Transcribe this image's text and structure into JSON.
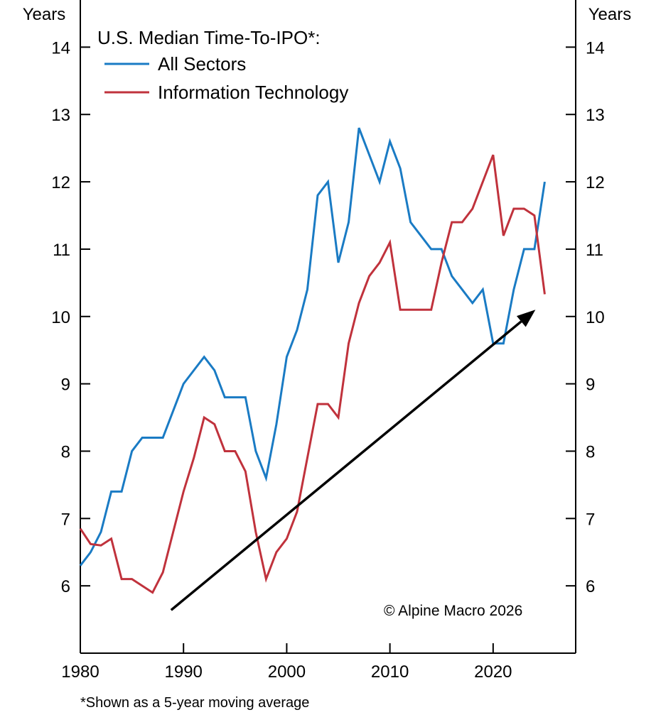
{
  "chart_data": {
    "type": "line",
    "title": "U.S. Median Time-To-IPO*:",
    "ylabel_left": "Years",
    "ylabel_right": "Years",
    "xlim": [
      1980,
      2028
    ],
    "ylim": [
      5,
      14.7
    ],
    "xticks": [
      1980,
      1990,
      2000,
      2010,
      2020
    ],
    "yticks": [
      6,
      7,
      8,
      9,
      10,
      11,
      12,
      13,
      14
    ],
    "grid": false,
    "legend_placement": "top-left",
    "x": [
      1980,
      1981,
      1982,
      1983,
      1984,
      1985,
      1986,
      1987,
      1988,
      1989,
      1990,
      1991,
      1992,
      1993,
      1994,
      1995,
      1996,
      1997,
      1998,
      1999,
      2000,
      2001,
      2002,
      2003,
      2004,
      2005,
      2006,
      2007,
      2008,
      2009,
      2010,
      2011,
      2012,
      2013,
      2014,
      2015,
      2016,
      2017,
      2018,
      2019,
      2020,
      2021,
      2022,
      2023,
      2024,
      2025
    ],
    "series": [
      {
        "name": "All Sectors",
        "color": "#1a7bc4",
        "values": [
          6.3,
          6.5,
          6.8,
          7.4,
          7.4,
          8.0,
          8.2,
          8.2,
          8.2,
          8.6,
          9.0,
          9.2,
          9.4,
          9.2,
          8.8,
          8.8,
          8.8,
          8.0,
          7.6,
          8.4,
          9.4,
          9.8,
          10.4,
          11.8,
          12.0,
          10.8,
          11.4,
          12.8,
          12.4,
          12.0,
          12.6,
          12.2,
          11.4,
          11.2,
          11.0,
          11.0,
          10.6,
          10.4,
          10.2,
          10.4,
          9.6,
          9.6,
          10.4,
          11.0,
          11.0,
          12.0
        ]
      },
      {
        "name": "Information Technology",
        "color": "#c0323c",
        "values": [
          6.85,
          6.62,
          6.6,
          6.7,
          6.1,
          6.1,
          6.0,
          5.9,
          6.2,
          6.8,
          7.4,
          7.9,
          8.5,
          8.4,
          8.0,
          8.0,
          7.7,
          6.8,
          6.1,
          6.5,
          6.7,
          7.1,
          7.9,
          8.7,
          8.7,
          8.5,
          9.6,
          10.2,
          10.6,
          10.8,
          11.1,
          10.1,
          10.1,
          10.1,
          10.1,
          10.8,
          11.4,
          11.4,
          11.6,
          12.0,
          12.4,
          11.2,
          11.6,
          11.6,
          11.5,
          10.33
        ]
      }
    ],
    "trend_arrow": {
      "from": [
        1988.8,
        5.64
      ],
      "to": [
        2024.1,
        10.1
      ],
      "color": "#000000"
    },
    "annotation": "© Alpine Macro 2026",
    "footnote": "*Shown as a 5-year moving average"
  }
}
